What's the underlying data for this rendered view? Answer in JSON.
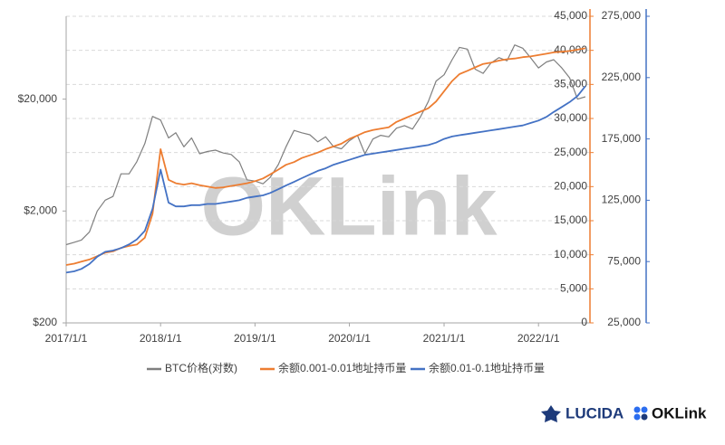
{
  "chart_data": {
    "type": "line",
    "watermark": "OKLink",
    "logos": [
      "LUCIDA",
      "OKLink"
    ],
    "x": [
      "2017/1/1",
      "2017/2/1",
      "2017/3/1",
      "2017/4/1",
      "2017/5/1",
      "2017/6/1",
      "2017/7/1",
      "2017/8/1",
      "2017/9/1",
      "2017/10/1",
      "2017/11/1",
      "2017/12/1",
      "2018/1/1",
      "2018/2/1",
      "2018/3/1",
      "2018/4/1",
      "2018/5/1",
      "2018/6/1",
      "2018/7/1",
      "2018/8/1",
      "2018/9/1",
      "2018/10/1",
      "2018/11/1",
      "2018/12/1",
      "2019/1/1",
      "2019/2/1",
      "2019/3/1",
      "2019/4/1",
      "2019/5/1",
      "2019/6/1",
      "2019/7/1",
      "2019/8/1",
      "2019/9/1",
      "2019/10/1",
      "2019/11/1",
      "2019/12/1",
      "2020/1/1",
      "2020/2/1",
      "2020/3/1",
      "2020/4/1",
      "2020/5/1",
      "2020/6/1",
      "2020/7/1",
      "2020/8/1",
      "2020/9/1",
      "2020/10/1",
      "2020/11/1",
      "2020/12/1",
      "2021/1/1",
      "2021/2/1",
      "2021/3/1",
      "2021/4/1",
      "2021/5/1",
      "2021/6/1",
      "2021/7/1",
      "2021/8/1",
      "2021/9/1",
      "2021/10/1",
      "2021/11/1",
      "2021/12/1",
      "2022/1/1",
      "2022/2/1",
      "2022/3/1",
      "2022/4/1",
      "2022/5/1",
      "2022/6/1",
      "2022/7/1"
    ],
    "xlim": [
      "2017/1/1",
      "2022/7/19"
    ],
    "xticks": [
      "2017/1/1",
      "2018/1/1",
      "2019/1/1",
      "2020/1/1",
      "2021/1/1",
      "2022/1/1"
    ],
    "ylim": [
      200,
      110000
    ],
    "ylog": true,
    "yticks": [
      {
        "value": 200,
        "label": "$200"
      },
      {
        "value": 2000,
        "label": "$2,000"
      },
      {
        "value": 20000,
        "label": "$20,000"
      }
    ],
    "y2lim": [
      0,
      45000
    ],
    "y2ticks": [
      0,
      {
        "value": 5000,
        "label": "5,000"
      },
      {
        "value": 10000,
        "label": "10,000"
      },
      {
        "value": 15000,
        "label": "15,000"
      },
      {
        "value": 20000,
        "label": "20,000"
      },
      {
        "value": 25000,
        "label": "25,000"
      },
      {
        "value": 30000,
        "label": "30,000"
      },
      {
        "value": 35000,
        "label": "35,000"
      },
      {
        "value": 40000,
        "label": "40,000"
      },
      {
        "value": 45000,
        "label": "45,000"
      }
    ],
    "y3lim": [
      25000,
      275000
    ],
    "y3ticks": [
      {
        "value": 25000,
        "label": "25,000"
      },
      {
        "value": 75000,
        "label": "75,000"
      },
      {
        "value": 125000,
        "label": "125,000"
      },
      {
        "value": 175000,
        "label": "175,000"
      },
      {
        "value": 225000,
        "label": "225,000"
      },
      {
        "value": 275000,
        "label": "275,000"
      }
    ],
    "grid": true,
    "series": [
      {
        "name": "BTC价格(对数)",
        "color": "#7f7f7f",
        "axis": "y",
        "values": [
          1000,
          1050,
          1100,
          1300,
          2000,
          2500,
          2700,
          4300,
          4300,
          5500,
          8000,
          14000,
          13000,
          9000,
          10000,
          7500,
          9000,
          6500,
          6800,
          7000,
          6600,
          6400,
          5500,
          3800,
          3700,
          3500,
          4000,
          5200,
          7500,
          10500,
          10000,
          9600,
          8300,
          9200,
          7500,
          7200,
          8500,
          9500,
          6500,
          8800,
          9500,
          9200,
          11000,
          11600,
          10800,
          13800,
          19000,
          29000,
          33000,
          45000,
          58000,
          56000,
          37000,
          34000,
          42000,
          47000,
          44000,
          61000,
          57000,
          47000,
          38000,
          43000,
          45000,
          38000,
          31000,
          20000,
          21000
        ]
      },
      {
        "name": "余额0.001-0.01地址持币量",
        "color": "#ed7d31",
        "axis": "y2",
        "values": [
          8500,
          8700,
          9000,
          9300,
          9800,
          10300,
          10500,
          11000,
          11300,
          11500,
          12500,
          16000,
          25500,
          21000,
          20500,
          20300,
          20500,
          20200,
          20000,
          19800,
          19900,
          20100,
          20300,
          20500,
          20800,
          21200,
          21800,
          22500,
          23200,
          23600,
          24200,
          24600,
          25000,
          25500,
          25900,
          26300,
          27000,
          27500,
          28000,
          28300,
          28500,
          28700,
          29500,
          30000,
          30500,
          31000,
          31500,
          32500,
          34000,
          35500,
          36500,
          37000,
          37500,
          38000,
          38200,
          38500,
          38700,
          38800,
          39000,
          39100,
          39300,
          39500,
          39700,
          39800,
          39900,
          40100,
          40300
        ]
      },
      {
        "name": "余额0.01-0.1地址持币量",
        "color": "#4472c4",
        "axis": "y3",
        "values": [
          66000,
          67000,
          69000,
          73000,
          79000,
          83000,
          84000,
          86000,
          89000,
          93000,
          100000,
          118000,
          150000,
          123000,
          120000,
          120000,
          121000,
          121000,
          122000,
          122000,
          123000,
          124000,
          125000,
          127000,
          128000,
          129000,
          131000,
          134000,
          137000,
          140000,
          143000,
          146000,
          149000,
          151000,
          154000,
          156000,
          158000,
          160000,
          162000,
          163000,
          164000,
          165000,
          166000,
          167000,
          168000,
          169000,
          170000,
          172000,
          175000,
          177000,
          178000,
          179000,
          180000,
          181000,
          182000,
          183000,
          184000,
          185000,
          186000,
          188000,
          190000,
          193000,
          197000,
          201000,
          205000,
          210000,
          218000
        ]
      }
    ]
  }
}
